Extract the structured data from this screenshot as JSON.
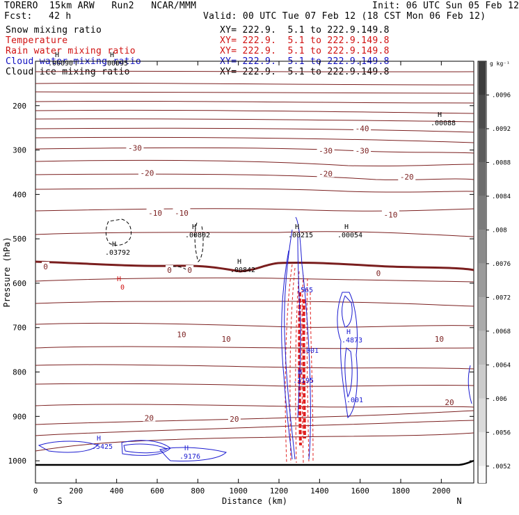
{
  "header": {
    "model": "TORERO  15km ARW   Run2   NCAR/MMM",
    "init": "Init: 06 UTC Sun 05 Feb 12",
    "fcst_label": "Fcst:",
    "fcst_value": "42 h",
    "valid": "Valid: 00 UTC Tue 07 Feb 12 (18 CST Mon 06 Feb 12)"
  },
  "fields": [
    {
      "name": "Snow mixing ratio",
      "xy": "XY= 222.9.  5.1 to 222.9.149.8",
      "color": "#000000"
    },
    {
      "name": "Temperature",
      "xy": "XY= 222.9.  5.1 to 222.9.149.8",
      "color": "#d01010"
    },
    {
      "name": "Rain water mixing ratio",
      "xy": "XY= 222.9.  5.1 to 222.9.149.8",
      "color": "#d01010"
    },
    {
      "name": "Cloud water mixing ratio",
      "xy": "XY= 222.9.  5.1 to 222.9.149.8",
      "color": "#1010c0"
    },
    {
      "name": "Cloud ice mixing ratio",
      "xy": "XY= 222.9.  5.1 to 222.9.149.8",
      "color": "#000000"
    }
  ],
  "chart_data": {
    "type": "contour-cross-section",
    "xlabel": "Distance (km)",
    "ylabel": "Pressure (hPa)",
    "x_ticks": [
      0,
      200,
      400,
      600,
      800,
      1000,
      1200,
      1400,
      1600,
      1800,
      2000
    ],
    "y_ticks": [
      200,
      300,
      400,
      500,
      600,
      700,
      800,
      900,
      1000
    ],
    "xlim": [
      0,
      2160
    ],
    "ylim": [
      1050,
      100
    ],
    "left_end_label": "S",
    "right_end_label": "N",
    "colorbar": {
      "units": "g kg⁻¹",
      "ticks": [
        ".0096",
        ".0092",
        ".0088",
        ".0084",
        ".008",
        ".0076",
        ".0072",
        ".0068",
        ".0064",
        ".006",
        ".0056",
        ".0052"
      ]
    },
    "temperature_labels": [
      {
        "text": "-40",
        "x": 1610,
        "p": 253
      },
      {
        "text": "-30",
        "x": 490,
        "p": 297
      },
      {
        "text": "-30",
        "x": 1430,
        "p": 303
      },
      {
        "text": "-30",
        "x": 1610,
        "p": 303
      },
      {
        "text": "-20",
        "x": 550,
        "p": 353
      },
      {
        "text": "-20",
        "x": 1430,
        "p": 355
      },
      {
        "text": "-20",
        "x": 1830,
        "p": 362
      },
      {
        "text": "-10",
        "x": 590,
        "p": 443
      },
      {
        "text": "-10",
        "x": 720,
        "p": 443
      },
      {
        "text": "-10",
        "x": 1750,
        "p": 447
      },
      {
        "text": "0",
        "x": 50,
        "p": 564
      },
      {
        "text": "0",
        "x": 660,
        "p": 572
      },
      {
        "text": "0",
        "x": 760,
        "p": 572
      },
      {
        "text": "0",
        "x": 1690,
        "p": 579
      },
      {
        "text": "10",
        "x": 720,
        "p": 717
      },
      {
        "text": "10",
        "x": 940,
        "p": 727
      },
      {
        "text": "10",
        "x": 1990,
        "p": 727
      },
      {
        "text": "20",
        "x": 560,
        "p": 905
      },
      {
        "text": "20",
        "x": 980,
        "p": 907
      },
      {
        "text": "20",
        "x": 2040,
        "p": 870
      }
    ],
    "maxima_labels": [
      {
        "mark": "H",
        "value": ".00095",
        "field": "snow"
      },
      {
        "mark": "H",
        "value": ".00090",
        "field": "snow"
      },
      {
        "mark": "H",
        "value": ".00088",
        "field": "snow"
      },
      {
        "mark": "H",
        "value": ".03792",
        "field": "snow"
      },
      {
        "mark": "H",
        "value": ".00802",
        "field": "snow"
      },
      {
        "mark": "H",
        "value": ".00842",
        "field": "snow"
      },
      {
        "mark": "H",
        "value": ".00215",
        "field": "snow"
      },
      {
        "mark": "H",
        "value": ".00054",
        "field": "snow"
      },
      {
        "mark": "H",
        "value": "0",
        "field": "rain"
      },
      {
        "mark": "H",
        "value": ".5425",
        "field": "cloud water"
      },
      {
        "mark": "H",
        "value": ".9176",
        "field": "cloud water"
      },
      {
        "mark": "H",
        "value": ".4873",
        "field": "cloud water"
      },
      {
        "mark": "H",
        "value": ".3195",
        "field": "cloud water"
      },
      {
        "mark": "",
        "value": ".001",
        "field": "cloud water"
      },
      {
        "mark": "",
        "value": ".001",
        "field": "cloud water"
      },
      {
        "mark": "",
        "value": ".565",
        "field": "cloud water"
      }
    ]
  }
}
